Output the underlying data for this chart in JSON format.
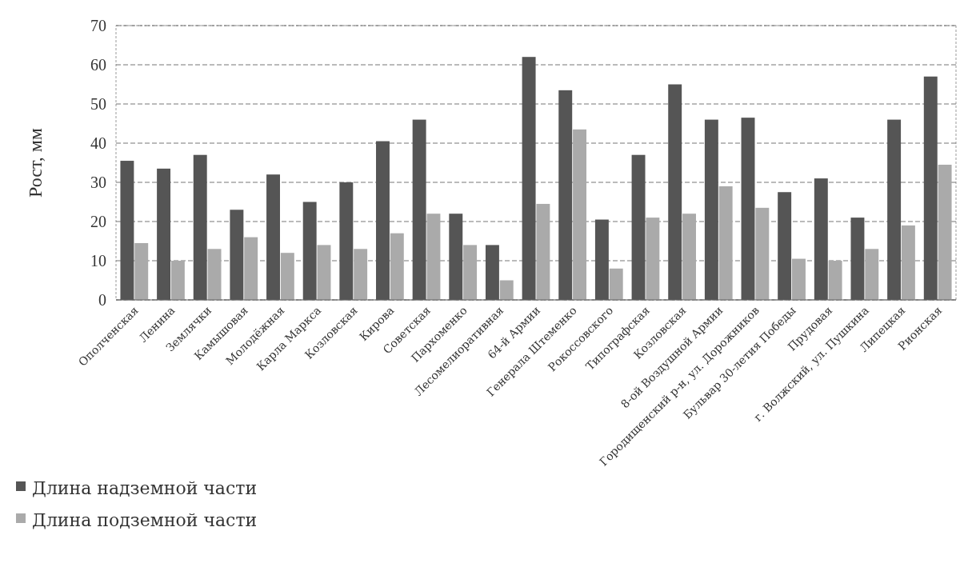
{
  "chart_data": {
    "type": "bar",
    "ylabel": "Рост, мм",
    "categories": [
      "Ополченская",
      "Ленина",
      "Землячки",
      "Камышовая",
      "Молодёжная",
      "Карла Маркса",
      "Козловская",
      "Кирова",
      "Советская",
      "Пархоменко",
      "Лесомелиоративная",
      "64-й Армии",
      "Генерала Штеменко",
      "Рокоссовского",
      "Типографская",
      "Козловская",
      "8-ой Воздушной Армии",
      "Городищенский р-н, ул. Дорожников",
      "Бульвар 30-летия Победы",
      "Прудовая",
      "г. Волжский, ул. Пушкина",
      "Липецкая",
      "Рионская"
    ],
    "series": [
      {
        "name": "Длина надземной части",
        "color": "#555555",
        "values": [
          35.5,
          33.5,
          37,
          23,
          32,
          25,
          30,
          40.5,
          46,
          22,
          14,
          62,
          53.5,
          20.5,
          37,
          55,
          46,
          46.5,
          27.5,
          31,
          21,
          46,
          57
        ]
      },
      {
        "name": "Длина подземной части",
        "color": "#aaaaaa",
        "values": [
          14.5,
          10,
          13,
          16,
          12,
          14,
          13,
          17,
          22,
          14,
          5,
          24.5,
          43.5,
          8,
          21,
          22,
          29,
          23.5,
          10.5,
          10,
          13,
          19,
          34.5
        ]
      }
    ],
    "ylim": [
      0,
      70
    ],
    "yticks": [
      0,
      10,
      20,
      30,
      40,
      50,
      60,
      70
    ],
    "grid": "y",
    "legend": "bottom left"
  }
}
